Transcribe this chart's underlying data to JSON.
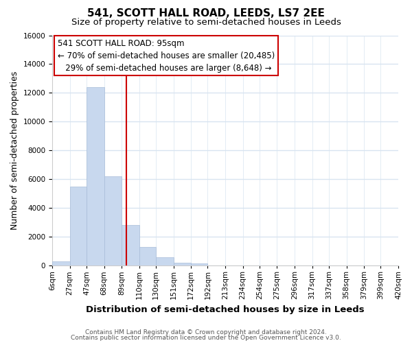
{
  "title": "541, SCOTT HALL ROAD, LEEDS, LS7 2EE",
  "subtitle": "Size of property relative to semi-detached houses in Leeds",
  "xlabel": "Distribution of semi-detached houses by size in Leeds",
  "ylabel": "Number of semi-detached properties",
  "bar_edges": [
    6,
    27,
    47,
    68,
    89,
    110,
    130,
    151,
    172,
    192,
    213,
    234,
    254,
    275,
    296,
    317,
    337,
    358,
    379,
    399,
    420
  ],
  "bar_heights": [
    300,
    5500,
    12400,
    6200,
    2800,
    1300,
    600,
    200,
    150,
    0,
    0,
    0,
    0,
    0,
    0,
    0,
    0,
    0,
    0,
    0
  ],
  "bar_color": "#c8d8ee",
  "bar_edgecolor": "#a8bcd8",
  "vline_x": 95,
  "vline_color": "#cc0000",
  "ylim": [
    0,
    16000
  ],
  "yticks": [
    0,
    2000,
    4000,
    6000,
    8000,
    10000,
    12000,
    14000,
    16000
  ],
  "annotation_title": "541 SCOTT HALL ROAD: 95sqm",
  "annotation_line1": "← 70% of semi-detached houses are smaller (20,485)",
  "annotation_line2": "   29% of semi-detached houses are larger (8,648) →",
  "annotation_box_color": "#ffffff",
  "annotation_box_edgecolor": "#cc0000",
  "footer1": "Contains HM Land Registry data © Crown copyright and database right 2024.",
  "footer2": "Contains public sector information licensed under the Open Government Licence v3.0.",
  "tick_labels": [
    "6sqm",
    "27sqm",
    "47sqm",
    "68sqm",
    "89sqm",
    "110sqm",
    "130sqm",
    "151sqm",
    "172sqm",
    "192sqm",
    "213sqm",
    "234sqm",
    "254sqm",
    "275sqm",
    "296sqm",
    "317sqm",
    "337sqm",
    "358sqm",
    "379sqm",
    "399sqm",
    "420sqm"
  ],
  "background_color": "#ffffff",
  "plot_bg_color": "#ffffff",
  "grid_color": "#d8e4f0",
  "title_fontsize": 11,
  "subtitle_fontsize": 9.5,
  "axis_label_fontsize": 9,
  "tick_fontsize": 7.5,
  "ann_fontsize": 8.5
}
